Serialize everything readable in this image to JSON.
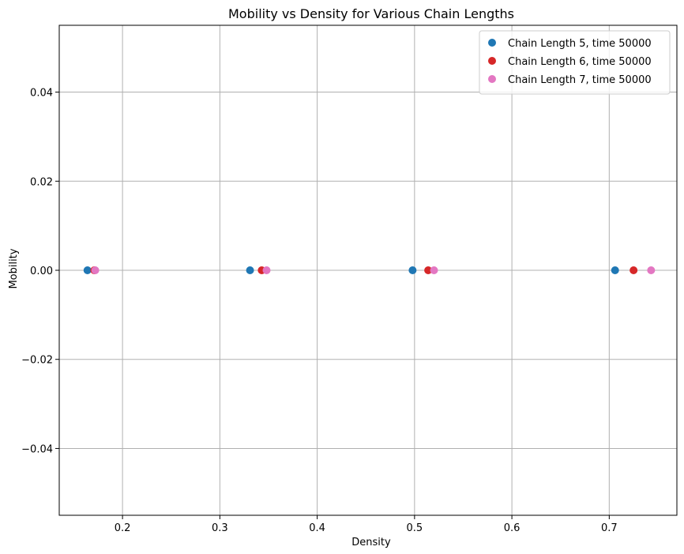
{
  "chart_data": {
    "type": "scatter",
    "title": "Mobility vs Density for Various Chain Lengths",
    "xlabel": "Density",
    "ylabel": "Mobility",
    "xlim": [
      0.135,
      0.7695
    ],
    "ylim": [
      -0.055,
      0.055
    ],
    "xticks": [
      0.2,
      0.3,
      0.4,
      0.5,
      0.6,
      0.7
    ],
    "xtick_labels": [
      "0.2",
      "0.3",
      "0.4",
      "0.5",
      "0.6",
      "0.7"
    ],
    "yticks": [
      -0.04,
      -0.02,
      0.0,
      0.02,
      0.04
    ],
    "ytick_labels": [
      "−0.04",
      "−0.02",
      "0.00",
      "0.02",
      "0.04"
    ],
    "grid": true,
    "legend_position": "top-right",
    "series": [
      {
        "name": "Chain Length 5, time 50000",
        "color": "#1f77b4",
        "x": [
          0.164,
          0.331,
          0.498,
          0.706
        ],
        "y": [
          0,
          0,
          0,
          0
        ]
      },
      {
        "name": "Chain Length 6, time 50000",
        "color": "#d62728",
        "x": [
          0.171,
          0.343,
          0.514,
          0.725
        ],
        "y": [
          0,
          0,
          0,
          0
        ]
      },
      {
        "name": "Chain Length 7, time 50000",
        "color": "#e377c2",
        "x": [
          0.172,
          0.348,
          0.52,
          0.743
        ],
        "y": [
          0,
          0,
          0,
          0
        ]
      }
    ]
  }
}
